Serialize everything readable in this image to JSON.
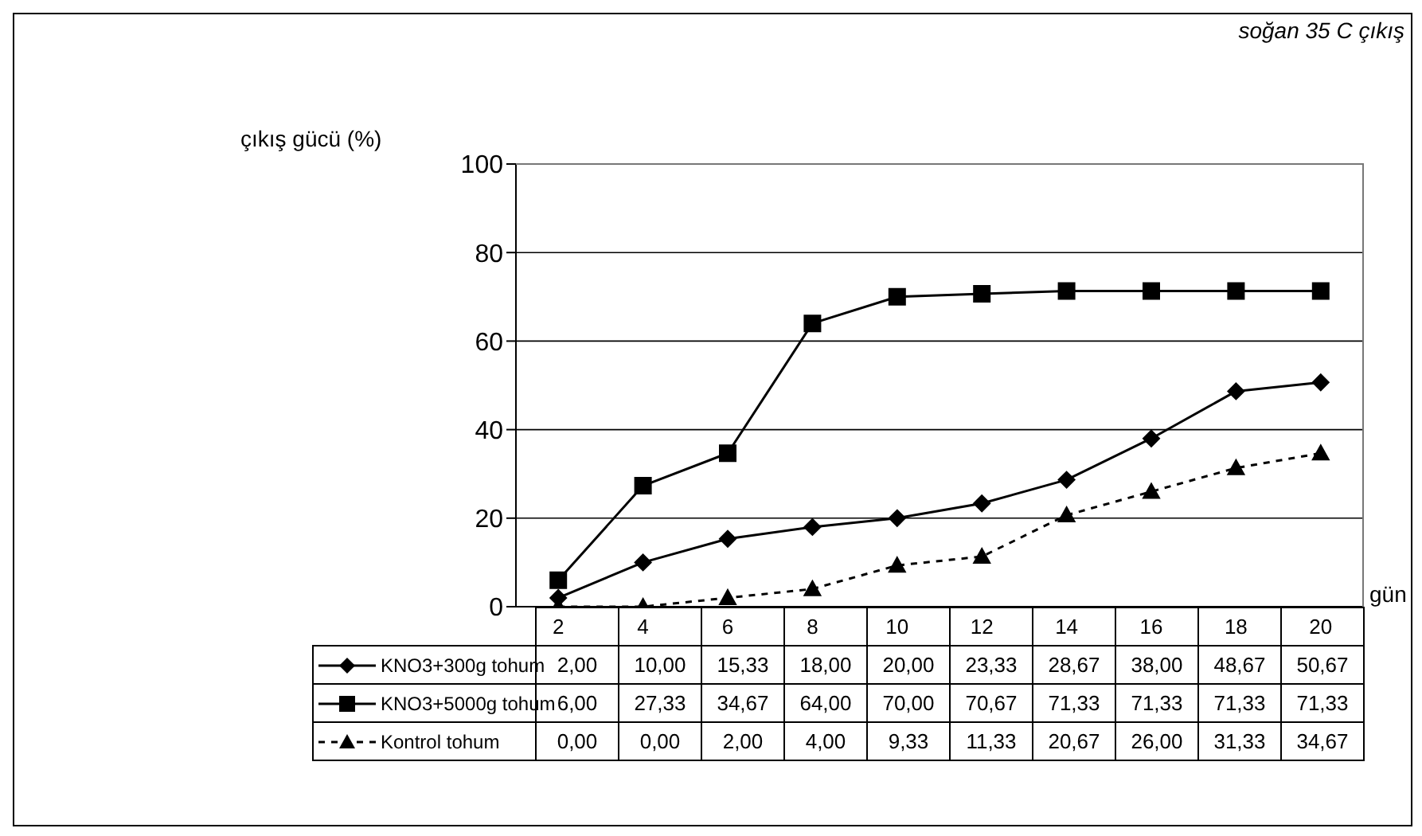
{
  "chart_data": {
    "type": "line",
    "title": "soğan 35 C çıkış",
    "xlabel": "gün",
    "ylabel": "çıkış gücü (%)",
    "categories": [
      "2",
      "4",
      "6",
      "8",
      "10",
      "12",
      "14",
      "16",
      "18",
      "20"
    ],
    "series": [
      {
        "name": "KNO3+300g tohum",
        "color": "#000000",
        "marker": "diamond",
        "line_style": "solid",
        "values": [
          2.0,
          10.0,
          15.33,
          18.0,
          20.0,
          23.33,
          28.67,
          38.0,
          48.67,
          50.67
        ],
        "value_labels": [
          "2,00",
          "10,00",
          "15,33",
          "18,00",
          "20,00",
          "23,33",
          "28,67",
          "38,00",
          "48,67",
          "50,67"
        ]
      },
      {
        "name": "KNO3+5000g tohum",
        "color": "#000000",
        "marker": "square",
        "line_style": "solid",
        "values": [
          6.0,
          27.33,
          34.67,
          64.0,
          70.0,
          70.67,
          71.33,
          71.33,
          71.33,
          71.33
        ],
        "value_labels": [
          "6,00",
          "27,33",
          "34,67",
          "64,00",
          "70,00",
          "70,67",
          "71,33",
          "71,33",
          "71,33",
          "71,33"
        ]
      },
      {
        "name": "Kontrol tohum",
        "color": "#000000",
        "marker": "triangle",
        "line_style": "dashed",
        "values": [
          0.0,
          0.0,
          2.0,
          4.0,
          9.33,
          11.33,
          20.67,
          26.0,
          31.33,
          34.67
        ],
        "value_labels": [
          "0,00",
          "0,00",
          "2,00",
          "4,00",
          "9,33",
          "11,33",
          "20,67",
          "26,00",
          "31,33",
          "34,67"
        ]
      }
    ],
    "ylim": [
      0,
      100
    ],
    "yticks": [
      0,
      20,
      40,
      60,
      80,
      100
    ],
    "grid": "y",
    "legend": "bottom"
  }
}
